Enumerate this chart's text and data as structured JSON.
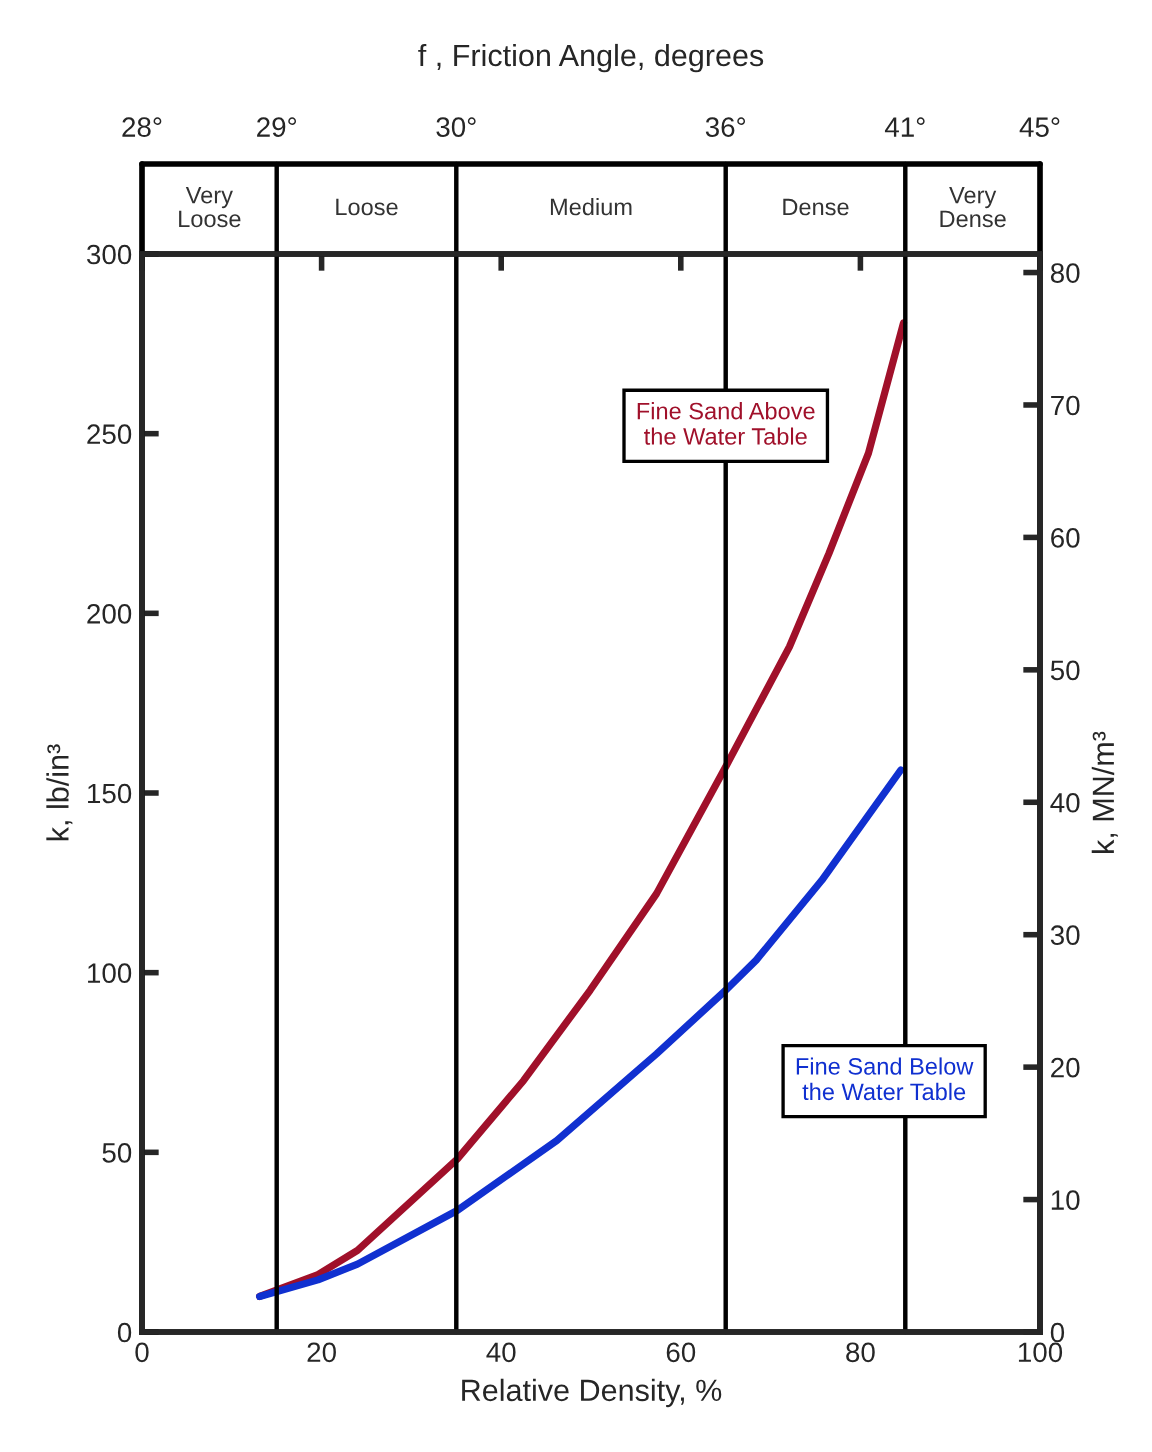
{
  "chart_data": {
    "type": "line",
    "xlabel": "Relative Density, %",
    "ylabel": "k, lb/in³",
    "y2label": "k, MN/m³",
    "xlim": [
      0,
      100
    ],
    "xticks": [
      0,
      20,
      40,
      60,
      80,
      100
    ],
    "ylim": [
      0,
      300
    ],
    "yticks": [
      0,
      50,
      100,
      150,
      200,
      250,
      300
    ],
    "y2lim": [
      0,
      81.4
    ],
    "y2ticks": [
      0,
      10,
      20,
      30,
      40,
      50,
      60,
      70,
      80
    ],
    "series": [
      {
        "name": "Fine Sand Above\nthe Water Table",
        "color": "#a0102a",
        "x": [
          13.1,
          19.6,
          24,
          35.1,
          42.5,
          49.9,
          57.3,
          65,
          72.1,
          76.5,
          80.9,
          84.8
        ],
        "values": [
          9.9,
          16,
          22.7,
          48.1,
          70,
          95.1,
          122,
          157.3,
          190.7,
          216.7,
          244.6,
          280.8
        ]
      },
      {
        "name": "Fine Sand Below\nthe Water Table",
        "color": "#1030d0",
        "x": [
          13.1,
          19.6,
          24,
          35.1,
          46.2,
          57.3,
          65,
          68.4,
          75.7,
          84.5
        ],
        "values": [
          9.9,
          14.5,
          18.9,
          33.8,
          53.3,
          77.4,
          95.1,
          103.5,
          125.7,
          156.4
        ]
      }
    ],
    "ref_lines": [
      {
        "axis": "x",
        "value": 0
      },
      {
        "axis": "x",
        "value": 15
      },
      {
        "axis": "x",
        "value": 35
      },
      {
        "axis": "x",
        "value": 65
      },
      {
        "axis": "x",
        "value": 85
      },
      {
        "axis": "x",
        "value": 100
      }
    ],
    "annotations": [
      "f , Friction Angle, degrees",
      "28°",
      "29°",
      "30°",
      "36°",
      "41°",
      "45°",
      "Very\nLoose",
      "Loose",
      "Medium",
      "Dense",
      "Very\nDense"
    ],
    "grid": false,
    "legend": false
  }
}
